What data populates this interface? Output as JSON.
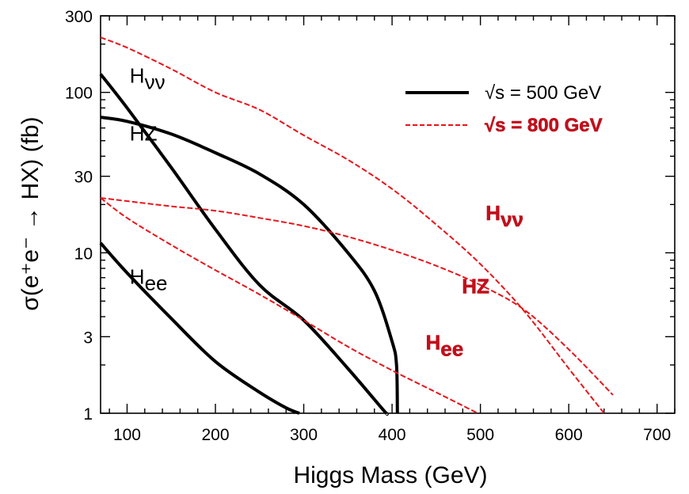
{
  "chart_data": {
    "type": "line",
    "xlabel": "Higgs Mass (GeV)",
    "ylabel": "σ(e⁺e⁻ → HX)  (fb)",
    "xlim": [
      70,
      720
    ],
    "ylim": [
      1,
      300
    ],
    "yscale": "log",
    "grid": false,
    "legend_position": "top-right",
    "x_ticks": [
      100,
      200,
      300,
      400,
      500,
      600,
      700
    ],
    "x_tick_labels": [
      "100",
      "200",
      "300",
      "400",
      "500",
      "600",
      "700"
    ],
    "y_ticks": [
      1,
      3,
      10,
      30,
      100,
      300
    ],
    "y_tick_labels": [
      "1",
      "3",
      "10",
      "30",
      "100",
      "300"
    ],
    "colors": {
      "500": "#000000",
      "800": "#e8141b",
      "800_text": "#c0101c"
    },
    "legend": [
      {
        "label": "√s = 500 GeV",
        "style": "solid",
        "color": "#000000"
      },
      {
        "label": "√s = 800 GeV",
        "style": "dashed",
        "color": "#e8141b"
      }
    ],
    "series": [
      {
        "energy": "500",
        "process": "Hvv",
        "style": "solid",
        "x": [
          70,
          100,
          150,
          200,
          250,
          300,
          350,
          390,
          394
        ],
        "y": [
          130,
          80,
          34,
          14,
          6.3,
          3.8,
          1.9,
          1.05,
          1.0
        ]
      },
      {
        "energy": "500",
        "process": "HZ",
        "style": "solid",
        "x": [
          70,
          100,
          150,
          200,
          250,
          300,
          350,
          380,
          400,
          405,
          406
        ],
        "y": [
          70,
          66,
          55,
          42,
          31,
          20,
          10,
          5.8,
          2.8,
          2.0,
          1.0
        ]
      },
      {
        "energy": "500",
        "process": "Hee",
        "style": "solid",
        "x": [
          70,
          100,
          150,
          200,
          250,
          280,
          295
        ],
        "y": [
          11.5,
          7.5,
          3.9,
          2.1,
          1.35,
          1.08,
          1.0
        ]
      },
      {
        "energy": "800",
        "process": "Hvv",
        "style": "dashed",
        "x": [
          70,
          100,
          150,
          200,
          250,
          300,
          350,
          400,
          450,
          500,
          550,
          600,
          640
        ],
        "y": [
          220,
          190,
          140,
          100,
          78,
          54,
          38,
          25,
          15,
          8.5,
          4.3,
          1.9,
          1.0
        ]
      },
      {
        "energy": "800",
        "process": "HZ",
        "style": "dashed",
        "x": [
          70,
          100,
          150,
          200,
          250,
          300,
          350,
          400,
          450,
          500,
          550,
          600,
          650
        ],
        "y": [
          22,
          21,
          19.5,
          18.3,
          16.5,
          14.7,
          12.6,
          10.4,
          8.3,
          6.3,
          4.4,
          2.5,
          1.3
        ]
      },
      {
        "energy": "800",
        "process": "Hee",
        "style": "dashed",
        "x": [
          70,
          100,
          150,
          200,
          250,
          300,
          350,
          400,
          450,
          497
        ],
        "y": [
          22,
          16.5,
          11.2,
          7.8,
          5.5,
          3.8,
          2.6,
          1.85,
          1.35,
          1.0
        ]
      }
    ],
    "annotations": [
      {
        "id": "hvv_500",
        "main": "H",
        "sub": "νν",
        "color": "#000000",
        "x": 103,
        "y": 115
      },
      {
        "id": "hz_500",
        "main": "HZ",
        "sub": "",
        "color": "#000000",
        "x": 103,
        "y": 50
      },
      {
        "id": "hee_500",
        "main": "H",
        "sub": "ee",
        "color": "#000000",
        "x": 103,
        "y": 6.4
      },
      {
        "id": "hvv_800",
        "main": "H",
        "sub": "νν",
        "color": "#c0101c",
        "x": 506,
        "y": 16
      },
      {
        "id": "hz_800",
        "main": "HZ",
        "sub": "",
        "color": "#c0101c",
        "x": 479,
        "y": 5.6
      },
      {
        "id": "hee_800",
        "main": "H",
        "sub": "ee",
        "color": "#c0101c",
        "x": 438,
        "y": 2.5
      }
    ]
  }
}
